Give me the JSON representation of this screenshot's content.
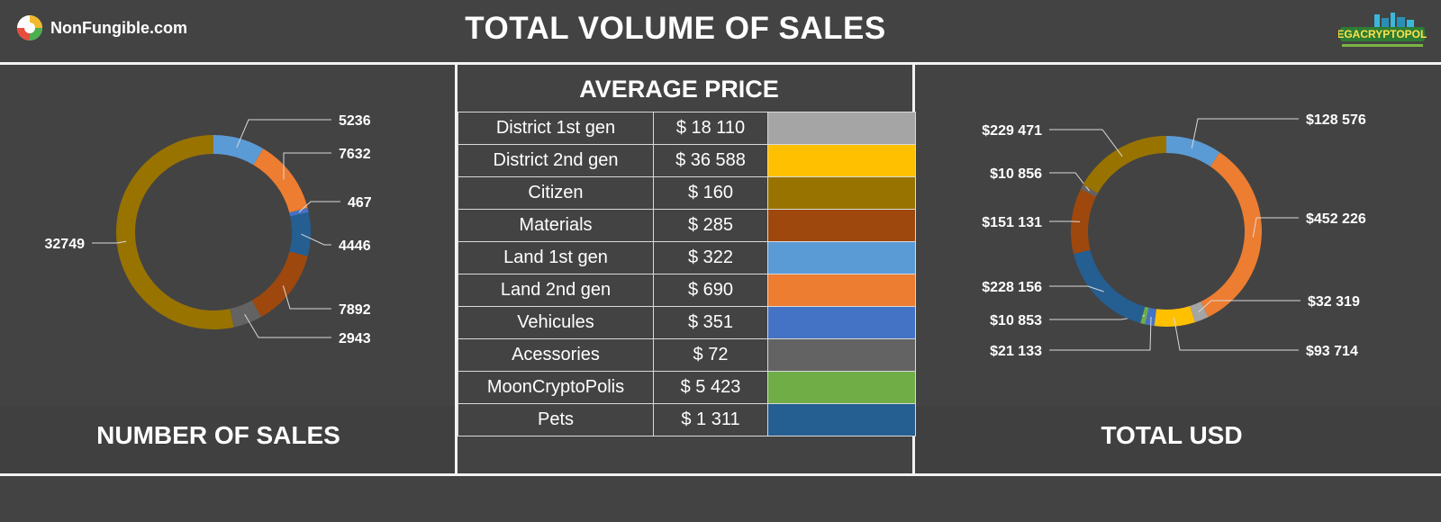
{
  "header": {
    "title": "TOTAL VOLUME OF SALES",
    "brand": "NonFungible.com",
    "partner_logo_text": "MEGACRYPTOPOLIS"
  },
  "left_panel": {
    "title": "NUMBER OF SALES"
  },
  "middle_panel": {
    "title": "AVERAGE PRICE",
    "rows": [
      {
        "label": "District 1st gen",
        "price": "$ 18 110",
        "color": "#a5a5a5"
      },
      {
        "label": "District 2nd gen",
        "price": "$ 36 588",
        "color": "#ffc000"
      },
      {
        "label": "Citizen",
        "price": "$ 160",
        "color": "#997300"
      },
      {
        "label": "Materials",
        "price": "$ 285",
        "color": "#9e480e"
      },
      {
        "label": "Land 1st gen",
        "price": "$ 322",
        "color": "#5b9bd5"
      },
      {
        "label": "Land 2nd gen",
        "price": "$ 690",
        "color": "#ed7d31"
      },
      {
        "label": "Vehicules",
        "price": "$ 351",
        "color": "#4472c4"
      },
      {
        "label": "Acessories",
        "price": "$ 72",
        "color": "#636363"
      },
      {
        "label": "MoonCryptoPolis",
        "price": "$ 5 423",
        "color": "#70ad47"
      },
      {
        "label": "Pets",
        "price": "$ 1 311",
        "color": "#255e91"
      }
    ]
  },
  "right_panel": {
    "title": "TOTAL USD"
  },
  "chart_data": [
    {
      "type": "pie",
      "variant": "donut",
      "title": "NUMBER OF SALES",
      "slices": [
        {
          "label": "5236",
          "value": 5236,
          "color": "#5b9bd5"
        },
        {
          "label": "7632",
          "value": 7632,
          "color": "#ed7d31"
        },
        {
          "label": "467",
          "value": 467,
          "color": "#4472c4"
        },
        {
          "label": "4446",
          "value": 4446,
          "color": "#255e91"
        },
        {
          "label": "7892",
          "value": 7892,
          "color": "#9e480e"
        },
        {
          "label": "2943",
          "value": 2943,
          "color": "#636363"
        },
        {
          "label": "32749",
          "value": 32749,
          "color": "#997300"
        }
      ]
    },
    {
      "type": "pie",
      "variant": "donut",
      "title": "TOTAL USD",
      "slices": [
        {
          "label": "$128 576",
          "value": 128576,
          "color": "#5b9bd5"
        },
        {
          "label": "$452 226",
          "value": 452226,
          "color": "#ed7d31"
        },
        {
          "label": "$32 319",
          "value": 32319,
          "color": "#a5a5a5"
        },
        {
          "label": "$93 714",
          "value": 93714,
          "color": "#ffc000"
        },
        {
          "label": "$21 133",
          "value": 21133,
          "color": "#4472c4"
        },
        {
          "label": "$10 853",
          "value": 10853,
          "color": "#70ad47"
        },
        {
          "label": "$228 156",
          "value": 228156,
          "color": "#255e91"
        },
        {
          "label": "$151 131",
          "value": 151131,
          "color": "#9e480e"
        },
        {
          "label": "$10 856",
          "value": 10856,
          "color": "#636363"
        },
        {
          "label": "$229 471",
          "value": 229471,
          "color": "#997300"
        }
      ]
    }
  ]
}
